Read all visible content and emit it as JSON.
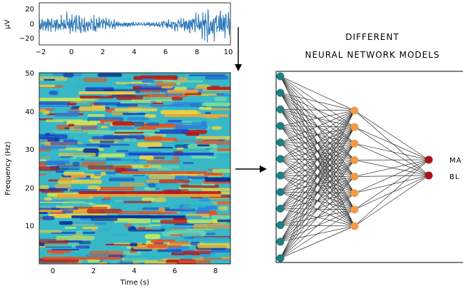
{
  "eeg_plot": {
    "ylabel": "μV",
    "ytick_labels": [
      "20",
      "0",
      "−20"
    ],
    "xtick_labels": [
      "−2",
      "0",
      "2",
      "4",
      "6",
      "8",
      "10"
    ]
  },
  "chart_data": [
    {
      "type": "line",
      "title": "",
      "ylabel": "μV",
      "xlabel": "",
      "xlim": [
        -2,
        10
      ],
      "ylim": [
        -30,
        30
      ],
      "description_values": {
        "amplitude_range": [
          -28,
          28
        ]
      }
    },
    {
      "type": "heatmap",
      "title": "",
      "xlabel": "Time (s)",
      "ylabel": "Frequency (Hz)",
      "xlim": [
        -0.7,
        8.7
      ],
      "ylim": [
        0,
        50
      ],
      "colormap": "jet",
      "strong_bands_hz": [
        12,
        19,
        25,
        34,
        45
      ]
    }
  ],
  "spectrogram": {
    "ylabel": "Frequency (Hz)",
    "xlabel": "Time (s)",
    "ytick_labels": [
      "50",
      "40",
      "30",
      "20",
      "10"
    ],
    "xtick_labels": [
      "0",
      "2",
      "4",
      "6",
      "8"
    ]
  },
  "network": {
    "title_line1": "DIFFERENT",
    "title_line2": "NEURAL NETWORK MODELS",
    "output_label_1": "MA",
    "output_label_2": "BL",
    "input_count": 12,
    "hidden_count": 8,
    "output_count": 2,
    "colors": {
      "input": "#1f7f82",
      "hidden": "#f39a4a",
      "output": "#a8141b",
      "edge": "#333333"
    }
  }
}
